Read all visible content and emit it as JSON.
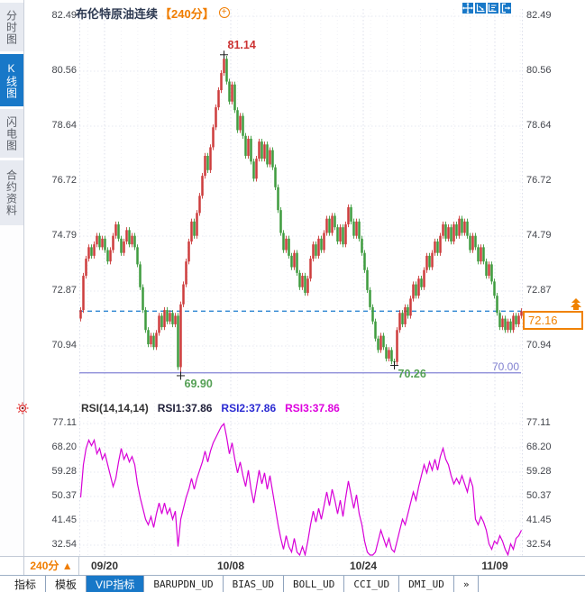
{
  "header": {
    "title": "布伦特原油连续",
    "period_tag": "【240分】",
    "add_icon_symbol": "+"
  },
  "toolbar": {
    "icons": [
      "crosshair-pan-icon",
      "zoom-x-axis-icon",
      "zoom-y-axis-icon",
      "exit-chart-icon"
    ]
  },
  "sidebar": {
    "items": [
      {
        "label": "分时图",
        "active": false
      },
      {
        "label": "K线图",
        "active": true
      },
      {
        "label": "闪电图",
        "active": false
      },
      {
        "label": "合约资料",
        "active": false
      }
    ]
  },
  "chart_data": [
    {
      "type": "candlestick",
      "title": "布伦特原油连续 240分 K线",
      "y_ticks": [
        "82.49",
        "80.56",
        "78.64",
        "76.72",
        "74.79",
        "72.87",
        "70.94"
      ],
      "ylim": [
        69.4,
        82.8
      ],
      "x_ticks": [
        "09/20",
        "10/08",
        "10/24",
        "11/09"
      ],
      "up_color": "#cd3d3d",
      "down_color": "#3f9c3f",
      "first_open": 71.9,
      "closes": [
        72.2,
        73.4,
        74.0,
        74.4,
        74.1,
        74.5,
        74.8,
        74.4,
        74.7,
        74.3,
        73.9,
        74.3,
        74.8,
        75.2,
        74.7,
        74.2,
        74.6,
        75.0,
        74.5,
        74.8,
        74.4,
        73.8,
        73.0,
        72.2,
        71.5,
        71.0,
        71.3,
        70.9,
        71.4,
        72.0,
        71.6,
        72.2,
        71.8,
        72.1,
        71.7,
        72.0,
        70.2,
        72.4,
        73.1,
        73.9,
        74.6,
        75.3,
        74.8,
        75.6,
        76.2,
        76.9,
        77.6,
        77.1,
        77.9,
        78.6,
        79.3,
        79.9,
        80.5,
        81.0,
        80.2,
        79.5,
        80.1,
        79.2,
        78.5,
        79.0,
        78.3,
        77.6,
        78.2,
        77.4,
        76.8,
        77.5,
        78.1,
        77.5,
        78.0,
        77.3,
        77.8,
        77.2,
        76.5,
        75.7,
        74.9,
        74.3,
        74.7,
        74.1,
        73.7,
        74.2,
        73.5,
        73.0,
        73.4,
        72.8,
        73.3,
        74.0,
        74.5,
        74.1,
        74.7,
        74.3,
        74.9,
        75.4,
        74.9,
        75.5,
        75.1,
        74.6,
        75.1,
        74.5,
        75.2,
        75.8,
        75.3,
        74.8,
        75.3,
        74.7,
        74.2,
        73.6,
        72.9,
        72.3,
        71.8,
        71.2,
        70.8,
        71.3,
        70.9,
        70.5,
        70.8,
        70.4,
        70.38,
        71.5,
        72.1,
        71.7,
        72.3,
        72.0,
        72.6,
        73.1,
        72.7,
        73.3,
        73.0,
        73.6,
        74.1,
        73.7,
        74.2,
        74.6,
        74.2,
        74.8,
        75.2,
        74.7,
        75.1,
        74.6,
        75.2,
        74.8,
        75.4,
        74.9,
        75.3,
        74.8,
        74.3,
        74.8,
        74.4,
        73.9,
        74.4,
        73.9,
        73.4,
        73.8,
        73.2,
        72.7,
        72.1,
        71.6,
        71.9,
        71.5,
        71.8,
        71.5,
        72.0,
        71.7,
        72.0,
        72.16
      ],
      "high_overrides": {
        "53": 81.14
      },
      "low_overrides": {
        "37": 69.9,
        "116": 70.26
      },
      "last_price": "72.16",
      "last_price_line": {
        "value": 72.16,
        "color": "#2e86d2",
        "style": "dashed"
      },
      "support_line": {
        "value": 70.0,
        "label": "70.00",
        "color": "#8585d6"
      },
      "annotations": [
        {
          "text": "81.14",
          "price": 81.14,
          "index": 53,
          "color": "#cc3333",
          "kind": "high"
        },
        {
          "text": "69.90",
          "price": 69.9,
          "index": 37,
          "color": "#55a055",
          "kind": "low"
        },
        {
          "text": "70.26",
          "price": 70.26,
          "index": 116,
          "color": "#55a055",
          "kind": "low"
        }
      ]
    },
    {
      "type": "line",
      "title": "RSI(14,14,14)",
      "legend": [
        {
          "label": "RSI1:37.86",
          "color": "#20203a"
        },
        {
          "label": "RSI2:37.86",
          "color": "#2a2ad2"
        },
        {
          "label": "RSI3:37.86",
          "color": "#dd00dd"
        }
      ],
      "y_ticks": [
        "77.11",
        "68.20",
        "59.28",
        "50.37",
        "41.45",
        "32.54"
      ],
      "ylim": [
        26,
        80
      ],
      "line_color": "#d800d8",
      "values": [
        50,
        62,
        68,
        71,
        69,
        71,
        66,
        68,
        64,
        66,
        62,
        58,
        54,
        57,
        63,
        68,
        64,
        66,
        63,
        65,
        62,
        55,
        50,
        46,
        42,
        40,
        43,
        39,
        44,
        48,
        44,
        48,
        44,
        46,
        42,
        45,
        32,
        42,
        46,
        50,
        53,
        57,
        53,
        57,
        60,
        63,
        67,
        63,
        67,
        70,
        72,
        74,
        76,
        77,
        72,
        66,
        70,
        64,
        59,
        63,
        58,
        54,
        60,
        53,
        48,
        54,
        60,
        55,
        59,
        53,
        58,
        52,
        46,
        40,
        35,
        31,
        36,
        32,
        30,
        35,
        30,
        28,
        32,
        29,
        34,
        40,
        45,
        41,
        46,
        42,
        47,
        52,
        47,
        53,
        49,
        44,
        49,
        43,
        50,
        56,
        51,
        46,
        51,
        44,
        40,
        34,
        30,
        28,
        26,
        30,
        34,
        38,
        35,
        32,
        35,
        31,
        30,
        34,
        38,
        42,
        40,
        44,
        48,
        52,
        49,
        54,
        58,
        62,
        59,
        63,
        60,
        64,
        60,
        65,
        68,
        64,
        62,
        58,
        55,
        57,
        55,
        58,
        55,
        52,
        57,
        54,
        42,
        40,
        43,
        41,
        38,
        33,
        31,
        34,
        33,
        36,
        34,
        31,
        29,
        33,
        31,
        35,
        36,
        38
      ]
    }
  ],
  "x_axis": {
    "period_label": "240分",
    "period_arrow": "▲",
    "dates": [
      "09/20",
      "10/08",
      "10/24",
      "11/09"
    ]
  },
  "bottom_tabs": {
    "items": [
      {
        "label": "指标",
        "active": false,
        "mono": false
      },
      {
        "label": "模板",
        "active": false,
        "mono": false
      },
      {
        "label": "VIP指标",
        "active": true,
        "mono": false
      },
      {
        "label": "BARUPDN_UD",
        "active": false,
        "mono": true
      },
      {
        "label": "BIAS_UD",
        "active": false,
        "mono": true
      },
      {
        "label": "BOLL_UD",
        "active": false,
        "mono": true
      },
      {
        "label": "CCI_UD",
        "active": false,
        "mono": true
      },
      {
        "label": "DMI_UD",
        "active": false,
        "mono": true
      },
      {
        "label": "»",
        "active": false,
        "mono": true
      }
    ]
  },
  "colors": {
    "accent_blue": "#1878c8",
    "orange": "#f07d00",
    "up_red": "#cd3d3d",
    "down_green": "#3f9c3f",
    "rsi_magenta": "#d800d8",
    "last_price_blue": "#2e86d2",
    "support_purple": "#8585d6",
    "grid": "#e9ebf2"
  }
}
